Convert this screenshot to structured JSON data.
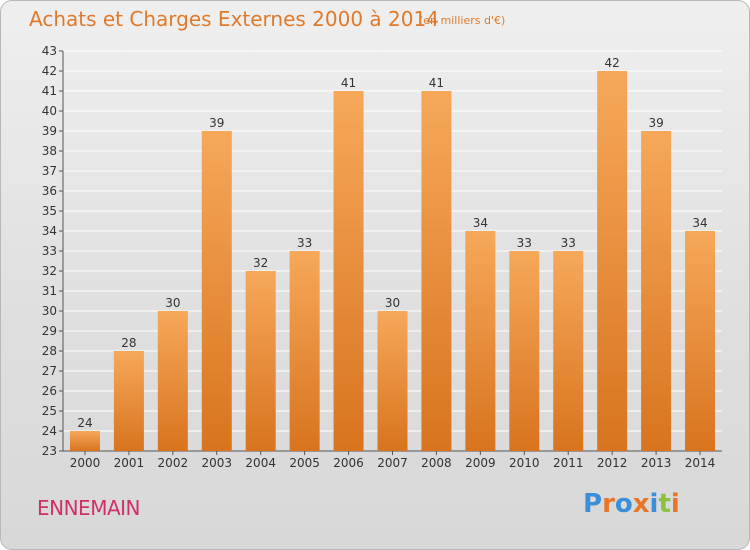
{
  "title": "Achats et Charges Externes 2000 à 2014",
  "subtitle": "(en milliers d'€)",
  "commune": "ENNEMAIN",
  "logo": {
    "text": "Proxiti",
    "colors": [
      "#3a8fd8",
      "#e8762a",
      "#3a8fd8",
      "#e8762a",
      "#3a8fd8",
      "#8ac43f",
      "#e8762a"
    ]
  },
  "colors": {
    "bar_top": "#f6a85a",
    "bar_bottom": "#d8741e",
    "title": "#e07a2a",
    "commune": "#d0306a"
  },
  "chart_data": {
    "type": "bar",
    "categories": [
      "2000",
      "2001",
      "2002",
      "2003",
      "2004",
      "2005",
      "2006",
      "2007",
      "2008",
      "2009",
      "2010",
      "2011",
      "2012",
      "2013",
      "2014"
    ],
    "values": [
      24,
      28,
      30,
      39,
      32,
      33,
      41,
      30,
      41,
      34,
      33,
      33,
      42,
      39,
      34
    ],
    "ylim": [
      23,
      43
    ],
    "yticks": [
      23,
      24,
      25,
      26,
      27,
      28,
      29,
      30,
      31,
      32,
      33,
      34,
      35,
      36,
      37,
      38,
      39,
      40,
      41,
      42,
      43
    ],
    "grid": true,
    "xlabel": "",
    "ylabel": ""
  }
}
